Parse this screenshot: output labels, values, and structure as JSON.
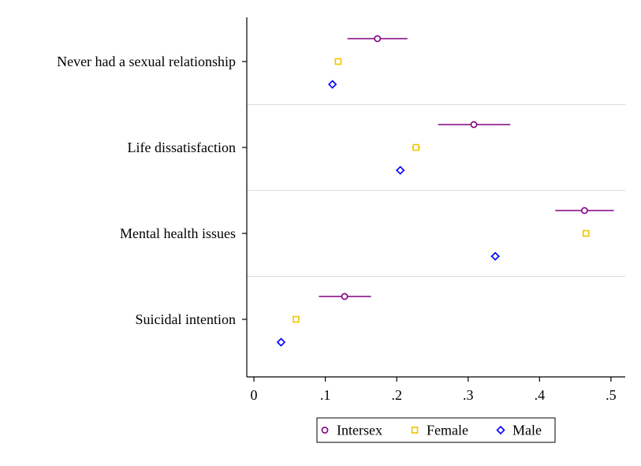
{
  "chart_data": {
    "type": "scatter",
    "subtype": "coefficient-plot-with-confidence-intervals",
    "title": "",
    "xlabel": "",
    "ylabel": "",
    "xlim": [
      -0.01,
      0.52
    ],
    "x_ticks": [
      0,
      0.1,
      0.2,
      0.3,
      0.4,
      0.5
    ],
    "x_tick_labels": [
      "0",
      ".1",
      ".2",
      ".3",
      ".4",
      ".5"
    ],
    "categories": [
      "Never had a sexual relationship",
      "Life dissatisfaction",
      "Mental health issues",
      "Suicidal intention"
    ],
    "series": [
      {
        "name": "Intersex",
        "marker": "circle",
        "color": "#800080",
        "values": [
          0.173,
          0.308,
          0.463,
          0.127
        ],
        "ci_low": [
          0.131,
          0.258,
          0.422,
          0.091
        ],
        "ci_high": [
          0.215,
          0.359,
          0.504,
          0.164
        ]
      },
      {
        "name": "Female",
        "marker": "square",
        "color": "#F2C400",
        "values": [
          0.118,
          0.227,
          0.465,
          0.059
        ],
        "ci_low": [
          0.113,
          0.221,
          0.46,
          0.056
        ],
        "ci_high": [
          0.123,
          0.233,
          0.47,
          0.062
        ]
      },
      {
        "name": "Male",
        "marker": "diamond",
        "color": "#0000FF",
        "values": [
          0.11,
          0.205,
          0.338,
          0.038
        ],
        "ci_low": [
          0.105,
          0.199,
          0.332,
          0.035
        ],
        "ci_high": [
          0.115,
          0.211,
          0.344,
          0.041
        ]
      }
    ],
    "legend": {
      "position": "bottom-center",
      "entries": [
        "Intersex",
        "Female",
        "Male"
      ]
    },
    "grid": "horizontal separators between categories"
  }
}
